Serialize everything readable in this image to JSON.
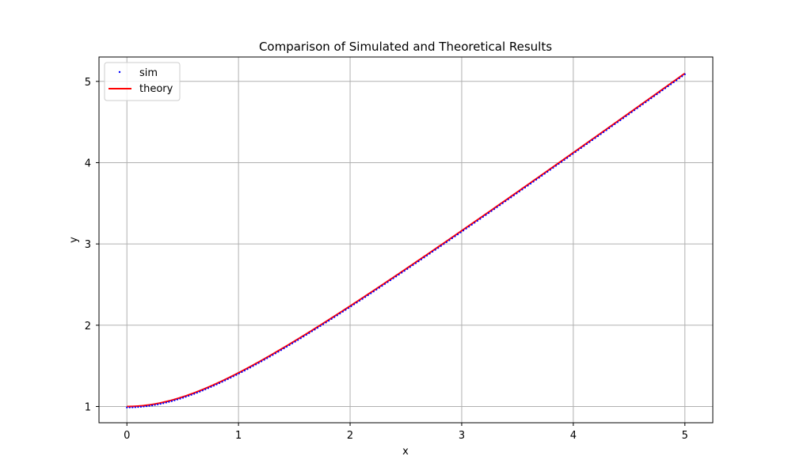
{
  "chart_data": {
    "type": "line",
    "title": "Comparison of Simulated and Theoretical Results",
    "xlabel": "x",
    "ylabel": "y",
    "xlim": [
      -0.25,
      5.25
    ],
    "ylim": [
      0.8,
      5.3
    ],
    "xticks": [
      0,
      1,
      2,
      3,
      4,
      5
    ],
    "yticks": [
      1,
      2,
      3,
      4,
      5
    ],
    "grid": true,
    "legend_position": "top-left",
    "function": "sqrt(1 + x^2)",
    "series": [
      {
        "name": "sim",
        "kind": "scatter",
        "color": "#0000ff",
        "x_range": [
          0,
          5
        ],
        "count": 200
      },
      {
        "name": "theory",
        "kind": "line",
        "color": "#ff0000",
        "x": [
          0,
          0.25,
          0.5,
          0.75,
          1,
          1.5,
          2,
          2.5,
          3,
          3.5,
          4,
          4.5,
          5
        ],
        "y": [
          1.0,
          1.03,
          1.12,
          1.25,
          1.41,
          1.8,
          2.24,
          2.69,
          3.16,
          3.64,
          4.12,
          4.61,
          5.1
        ]
      }
    ]
  }
}
